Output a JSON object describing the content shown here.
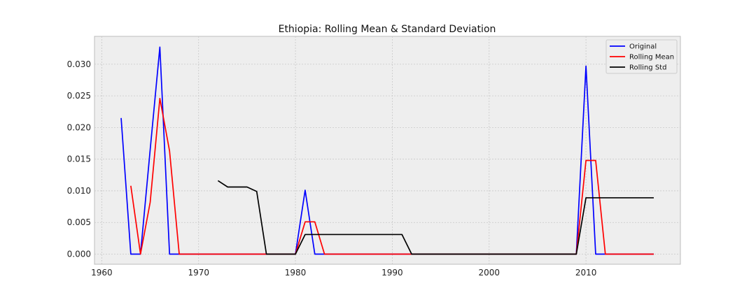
{
  "chart_data": {
    "type": "line",
    "title": "Ethiopia: Rolling Mean & Standard Deviation",
    "xlabel": "",
    "ylabel": "",
    "xlim": [
      1959.25,
      2019.75
    ],
    "ylim": [
      -0.0016,
      0.0344
    ],
    "x_ticks": [
      1960,
      1970,
      1980,
      1990,
      2000,
      2010
    ],
    "y_ticks": [
      0.0,
      0.005,
      0.01,
      0.015,
      0.02,
      0.025,
      0.03
    ],
    "y_tick_labels": [
      "0.000",
      "0.005",
      "0.010",
      "0.015",
      "0.020",
      "0.025",
      "0.030"
    ],
    "grid": true,
    "legend_position": "top-right",
    "series": [
      {
        "name": "Original",
        "color": "#0000ff",
        "points": [
          [
            1962,
            0.0215
          ],
          [
            1963,
            0.0
          ],
          [
            1964,
            0.0
          ],
          [
            1965,
            0.0165
          ],
          [
            1966,
            0.0327
          ],
          [
            1967,
            0.0
          ],
          [
            1968,
            0.0
          ],
          [
            1969,
            0.0
          ],
          [
            1970,
            0.0
          ],
          [
            1971,
            0.0
          ],
          [
            1972,
            0.0
          ],
          [
            1973,
            0.0
          ],
          [
            1974,
            0.0
          ],
          [
            1975,
            0.0
          ],
          [
            1976,
            0.0
          ],
          [
            1977,
            0.0
          ],
          [
            1978,
            0.0
          ],
          [
            1979,
            0.0
          ],
          [
            1980,
            0.0
          ],
          [
            1981,
            0.0101
          ],
          [
            1982,
            0.0
          ],
          [
            1983,
            0.0
          ],
          [
            1984,
            0.0
          ],
          [
            1985,
            0.0
          ],
          [
            1986,
            0.0
          ],
          [
            1987,
            0.0
          ],
          [
            1988,
            0.0
          ],
          [
            1989,
            0.0
          ],
          [
            1990,
            0.0
          ],
          [
            1991,
            0.0
          ],
          [
            1992,
            0.0
          ],
          [
            1993,
            0.0
          ],
          [
            1994,
            0.0
          ],
          [
            1995,
            0.0
          ],
          [
            1996,
            0.0
          ],
          [
            1997,
            0.0
          ],
          [
            1998,
            0.0
          ],
          [
            1999,
            0.0
          ],
          [
            2000,
            0.0
          ],
          [
            2001,
            0.0
          ],
          [
            2002,
            0.0
          ],
          [
            2003,
            0.0
          ],
          [
            2004,
            0.0
          ],
          [
            2005,
            0.0
          ],
          [
            2006,
            0.0
          ],
          [
            2007,
            0.0
          ],
          [
            2008,
            0.0
          ],
          [
            2009,
            0.0
          ],
          [
            2010,
            0.0297
          ],
          [
            2011,
            0.0
          ],
          [
            2012,
            0.0
          ],
          [
            2013,
            0.0
          ],
          [
            2014,
            0.0
          ],
          [
            2015,
            0.0
          ],
          [
            2016,
            0.0
          ],
          [
            2017,
            0.0
          ]
        ]
      },
      {
        "name": "Rolling Mean",
        "color": "#ff0000",
        "points": [
          [
            1963,
            0.0108
          ],
          [
            1964,
            0.0
          ],
          [
            1965,
            0.0082
          ],
          [
            1966,
            0.0246
          ],
          [
            1967,
            0.0163
          ],
          [
            1968,
            0.0
          ],
          [
            1969,
            0.0
          ],
          [
            1970,
            0.0
          ],
          [
            1971,
            0.0
          ],
          [
            1972,
            0.0
          ],
          [
            1973,
            0.0
          ],
          [
            1974,
            0.0
          ],
          [
            1975,
            0.0
          ],
          [
            1976,
            0.0
          ],
          [
            1977,
            0.0
          ],
          [
            1978,
            0.0
          ],
          [
            1979,
            0.0
          ],
          [
            1980,
            0.0
          ],
          [
            1981,
            0.0051
          ],
          [
            1982,
            0.0051
          ],
          [
            1983,
            0.0
          ],
          [
            1984,
            0.0
          ],
          [
            1985,
            0.0
          ],
          [
            1986,
            0.0
          ],
          [
            1987,
            0.0
          ],
          [
            1988,
            0.0
          ],
          [
            1989,
            0.0
          ],
          [
            1990,
            0.0
          ],
          [
            1991,
            0.0
          ],
          [
            1992,
            0.0
          ],
          [
            1993,
            0.0
          ],
          [
            1994,
            0.0
          ],
          [
            1995,
            0.0
          ],
          [
            1996,
            0.0
          ],
          [
            1997,
            0.0
          ],
          [
            1998,
            0.0
          ],
          [
            1999,
            0.0
          ],
          [
            2000,
            0.0
          ],
          [
            2001,
            0.0
          ],
          [
            2002,
            0.0
          ],
          [
            2003,
            0.0
          ],
          [
            2004,
            0.0
          ],
          [
            2005,
            0.0
          ],
          [
            2006,
            0.0
          ],
          [
            2007,
            0.0
          ],
          [
            2008,
            0.0
          ],
          [
            2009,
            0.0
          ],
          [
            2010,
            0.0148
          ],
          [
            2011,
            0.0148
          ],
          [
            2012,
            0.0
          ],
          [
            2013,
            0.0
          ],
          [
            2014,
            0.0
          ],
          [
            2015,
            0.0
          ],
          [
            2016,
            0.0
          ],
          [
            2017,
            0.0
          ]
        ]
      },
      {
        "name": "Rolling Std",
        "color": "#000000",
        "points": [
          [
            1972,
            0.0116
          ],
          [
            1973,
            0.0106
          ],
          [
            1974,
            0.0106
          ],
          [
            1975,
            0.0106
          ],
          [
            1976,
            0.0099
          ],
          [
            1977,
            0.0
          ],
          [
            1978,
            0.0
          ],
          [
            1979,
            0.0
          ],
          [
            1980,
            0.0
          ],
          [
            1981,
            0.0031
          ],
          [
            1982,
            0.0031
          ],
          [
            1983,
            0.0031
          ],
          [
            1984,
            0.0031
          ],
          [
            1985,
            0.0031
          ],
          [
            1986,
            0.0031
          ],
          [
            1987,
            0.0031
          ],
          [
            1988,
            0.0031
          ],
          [
            1989,
            0.0031
          ],
          [
            1990,
            0.0031
          ],
          [
            1991,
            0.0031
          ],
          [
            1992,
            0.0
          ],
          [
            1993,
            0.0
          ],
          [
            1994,
            0.0
          ],
          [
            1995,
            0.0
          ],
          [
            1996,
            0.0
          ],
          [
            1997,
            0.0
          ],
          [
            1998,
            0.0
          ],
          [
            1999,
            0.0
          ],
          [
            2000,
            0.0
          ],
          [
            2001,
            0.0
          ],
          [
            2002,
            0.0
          ],
          [
            2003,
            0.0
          ],
          [
            2004,
            0.0
          ],
          [
            2005,
            0.0
          ],
          [
            2006,
            0.0
          ],
          [
            2007,
            0.0
          ],
          [
            2008,
            0.0
          ],
          [
            2009,
            0.0
          ],
          [
            2010,
            0.0089
          ],
          [
            2011,
            0.0089
          ],
          [
            2012,
            0.0089
          ],
          [
            2013,
            0.0089
          ],
          [
            2014,
            0.0089
          ],
          [
            2015,
            0.0089
          ],
          [
            2016,
            0.0089
          ],
          [
            2017,
            0.0089
          ]
        ]
      }
    ]
  },
  "colors": {
    "plot_background": "#eeeeee",
    "grid": "#c8c8c8",
    "frame": "#bcbcbc"
  }
}
